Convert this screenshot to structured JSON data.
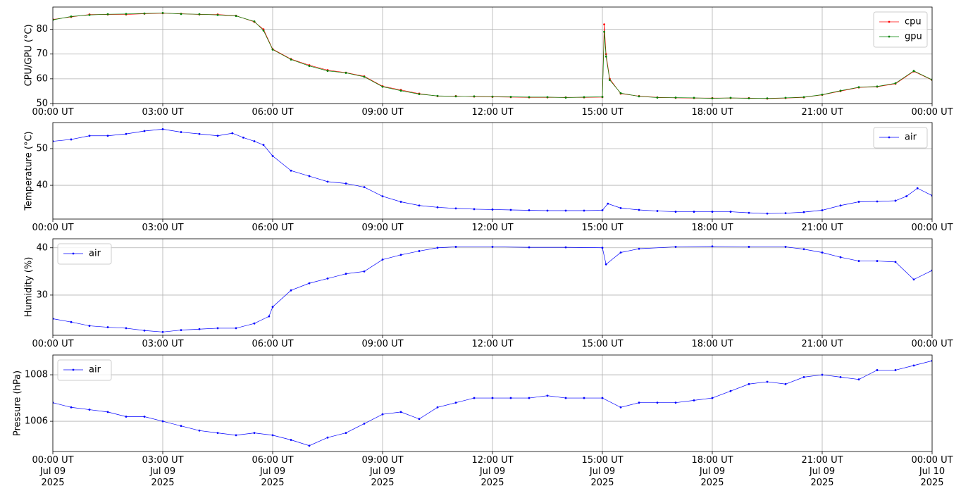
{
  "chart_data": [
    {
      "type": "line",
      "ylabel": "CPU/GPU (°C)",
      "x": [
        0,
        0.5,
        1,
        1.5,
        2,
        2.5,
        3,
        3.5,
        4,
        4.5,
        5,
        5.5,
        5.75,
        6,
        6.5,
        7,
        7.5,
        8,
        8.5,
        9,
        9.5,
        10,
        10.5,
        11,
        11.5,
        12,
        12.5,
        13,
        13.5,
        14,
        14.5,
        15,
        15.05,
        15.1,
        15.2,
        15.5,
        16,
        16.5,
        17,
        17.5,
        18,
        18.5,
        19,
        19.5,
        20,
        20.5,
        21,
        21.5,
        22,
        22.5,
        23,
        23.5,
        24
      ],
      "series": [
        {
          "name": "cpu",
          "color": "#ff0000",
          "values": [
            84,
            85,
            86,
            86,
            86,
            86.3,
            86.5,
            86.3,
            86,
            86,
            85.5,
            83,
            80,
            72,
            68,
            65.5,
            63.5,
            62.5,
            61,
            57,
            55.5,
            54,
            53,
            53,
            52.8,
            52.7,
            52.6,
            52.5,
            52.5,
            52.5,
            52.5,
            52.6,
            82,
            70,
            60,
            54,
            53,
            52.5,
            52.3,
            52.2,
            52.2,
            52.2,
            52.2,
            52,
            52.2,
            52.5,
            53.5,
            55,
            56.5,
            56.8,
            58,
            63,
            59.5
          ]
        },
        {
          "name": "gpu",
          "color": "#008000",
          "values": [
            83.8,
            85.2,
            85.8,
            86.1,
            86.2,
            86.4,
            86.6,
            86.2,
            86.1,
            85.8,
            85.4,
            83.2,
            79.5,
            71.8,
            67.8,
            65.2,
            63.2,
            62.4,
            60.8,
            56.8,
            55.2,
            53.8,
            53.1,
            52.9,
            52.9,
            52.8,
            52.7,
            52.6,
            52.6,
            52.4,
            52.6,
            52.7,
            79,
            69,
            59.5,
            54.2,
            52.9,
            52.4,
            52.4,
            52.3,
            52.1,
            52.3,
            52.1,
            52.1,
            52.3,
            52.6,
            53.6,
            55.2,
            56.6,
            56.9,
            58.2,
            63.2,
            59.6
          ]
        }
      ],
      "xlim": [
        0,
        24
      ],
      "xticks": [
        {
          "value": 0,
          "label": "00:00 UT"
        },
        {
          "value": 3,
          "label": "03:00 UT"
        },
        {
          "value": 6,
          "label": "06:00 UT"
        },
        {
          "value": 9,
          "label": "09:00 UT"
        },
        {
          "value": 12,
          "label": "12:00 UT"
        },
        {
          "value": 15,
          "label": "15:00 UT"
        },
        {
          "value": 18,
          "label": "18:00 UT"
        },
        {
          "value": 21,
          "label": "21:00 UT"
        },
        {
          "value": 24,
          "label": "00:00 UT"
        }
      ],
      "ylim": [
        50,
        89
      ],
      "yticks": [
        50,
        60,
        70,
        80
      ],
      "grid": true,
      "legend": "upper right"
    },
    {
      "type": "line",
      "ylabel": "Temperature (°C)",
      "x": [
        0,
        0.5,
        1,
        1.5,
        2,
        2.5,
        3,
        3.5,
        4,
        4.5,
        4.9,
        5.2,
        5.5,
        5.75,
        6,
        6.5,
        7,
        7.5,
        8,
        8.5,
        9,
        9.5,
        10,
        10.5,
        11,
        11.5,
        12,
        12.5,
        13,
        13.5,
        14,
        14.5,
        15,
        15.15,
        15.5,
        16,
        16.5,
        17,
        17.5,
        18,
        18.5,
        19,
        19.5,
        20,
        20.5,
        21,
        21.5,
        22,
        22.5,
        23,
        23.3,
        23.6,
        24
      ],
      "series": [
        {
          "name": "air",
          "color": "#0000ff",
          "values": [
            52,
            52.5,
            53.5,
            53.5,
            54,
            54.8,
            55.3,
            54.5,
            54,
            53.5,
            54.2,
            53,
            52,
            51,
            48,
            44,
            42.5,
            41,
            40.5,
            39.5,
            37,
            35.5,
            34.5,
            34,
            33.7,
            33.5,
            33.4,
            33.3,
            33.2,
            33.1,
            33.1,
            33.1,
            33.2,
            35,
            33.8,
            33.3,
            33,
            32.8,
            32.8,
            32.8,
            32.8,
            32.5,
            32.3,
            32.4,
            32.7,
            33.2,
            34.5,
            35.5,
            35.6,
            35.8,
            37,
            39.2,
            37.2
          ]
        }
      ],
      "xlim": [
        0,
        24
      ],
      "xticks": [
        {
          "value": 0,
          "label": "00:00 UT"
        },
        {
          "value": 3,
          "label": "03:00 UT"
        },
        {
          "value": 6,
          "label": "06:00 UT"
        },
        {
          "value": 9,
          "label": "09:00 UT"
        },
        {
          "value": 12,
          "label": "12:00 UT"
        },
        {
          "value": 15,
          "label": "15:00 UT"
        },
        {
          "value": 18,
          "label": "18:00 UT"
        },
        {
          "value": 21,
          "label": "21:00 UT"
        },
        {
          "value": 24,
          "label": "00:00 UT"
        }
      ],
      "ylim": [
        30.8,
        57.1
      ],
      "yticks": [
        40,
        50
      ],
      "grid": true,
      "legend": "upper right"
    },
    {
      "type": "line",
      "ylabel": "Humidity (%)",
      "x": [
        0,
        0.5,
        1,
        1.5,
        2,
        2.5,
        3,
        3.5,
        4,
        4.5,
        5,
        5.5,
        5.9,
        6,
        6.5,
        7,
        7.5,
        8,
        8.5,
        9,
        9.5,
        10,
        10.5,
        11,
        12,
        13,
        14,
        15,
        15.1,
        15.5,
        16,
        17,
        18,
        19,
        20,
        20.5,
        21,
        21.5,
        22,
        22.5,
        23,
        23.5,
        24
      ],
      "series": [
        {
          "name": "air",
          "color": "#0000ff",
          "values": [
            25,
            24.3,
            23.5,
            23.2,
            23,
            22.5,
            22.2,
            22.6,
            22.8,
            23,
            23,
            24,
            25.5,
            27.5,
            31,
            32.5,
            33.5,
            34.5,
            35,
            37.5,
            38.5,
            39.3,
            40,
            40.2,
            40.2,
            40.1,
            40.1,
            40,
            36.5,
            39,
            39.8,
            40.2,
            40.3,
            40.2,
            40.2,
            39.7,
            39,
            38,
            37.2,
            37.2,
            37,
            33.3,
            35.2
          ]
        }
      ],
      "xlim": [
        0,
        24
      ],
      "xticks": [
        {
          "value": 0,
          "label": "00:00 UT"
        },
        {
          "value": 3,
          "label": "03:00 UT"
        },
        {
          "value": 6,
          "label": "06:00 UT"
        },
        {
          "value": 9,
          "label": "09:00 UT"
        },
        {
          "value": 12,
          "label": "12:00 UT"
        },
        {
          "value": 15,
          "label": "15:00 UT"
        },
        {
          "value": 18,
          "label": "18:00 UT"
        },
        {
          "value": 21,
          "label": "21:00 UT"
        },
        {
          "value": 24,
          "label": "00:00 UT"
        }
      ],
      "ylim": [
        21.5,
        41.9
      ],
      "yticks": [
        30,
        40
      ],
      "grid": true,
      "legend": "upper left"
    },
    {
      "type": "line",
      "ylabel": "Pressure (hPa)",
      "x": [
        0,
        0.5,
        1,
        1.5,
        2,
        2.5,
        3,
        3.5,
        4,
        4.5,
        5,
        5.5,
        6,
        6.5,
        7,
        7.5,
        8,
        8.5,
        9,
        9.5,
        10,
        10.5,
        11,
        11.5,
        12,
        12.5,
        13,
        13.5,
        14,
        14.5,
        15,
        15.5,
        16,
        16.5,
        17,
        17.5,
        18,
        18.5,
        19,
        19.5,
        20,
        20.5,
        21,
        21.5,
        22,
        22.5,
        23,
        23.5,
        24
      ],
      "series": [
        {
          "name": "air",
          "color": "#0000ff",
          "values": [
            1006.8,
            1006.6,
            1006.5,
            1006.4,
            1006.2,
            1006.2,
            1006.0,
            1005.8,
            1005.6,
            1005.5,
            1005.4,
            1005.5,
            1005.4,
            1005.2,
            1004.95,
            1005.3,
            1005.5,
            1005.9,
            1006.3,
            1006.4,
            1006.1,
            1006.6,
            1006.8,
            1007.0,
            1007.0,
            1007.0,
            1007.0,
            1007.1,
            1007.0,
            1007.0,
            1007.0,
            1006.6,
            1006.8,
            1006.8,
            1006.8,
            1006.9,
            1007.0,
            1007.3,
            1007.6,
            1007.7,
            1007.6,
            1007.9,
            1008.0,
            1007.9,
            1007.8,
            1008.2,
            1008.2,
            1008.4,
            1008.6
          ]
        }
      ],
      "xlim": [
        0,
        24
      ],
      "xticks": [
        {
          "value": 0,
          "label": "00:00 UT\nJul 09\n2025"
        },
        {
          "value": 3,
          "label": "03:00 UT\nJul 09\n2025"
        },
        {
          "value": 6,
          "label": "06:00 UT\nJul 09\n2025"
        },
        {
          "value": 9,
          "label": "09:00 UT\nJul 09\n2025"
        },
        {
          "value": 12,
          "label": "12:00 UT\nJul 09\n2025"
        },
        {
          "value": 15,
          "label": "15:00 UT\nJul 09\n2025"
        },
        {
          "value": 18,
          "label": "18:00 UT\nJul 09\n2025"
        },
        {
          "value": 21,
          "label": "21:00 UT\nJul 09\n2025"
        },
        {
          "value": 24,
          "label": "00:00 UT\nJul 10\n2025"
        }
      ],
      "ylim": [
        1004.7,
        1008.85
      ],
      "yticks": [
        1006,
        1008
      ],
      "grid": true,
      "legend": "upper left"
    }
  ]
}
